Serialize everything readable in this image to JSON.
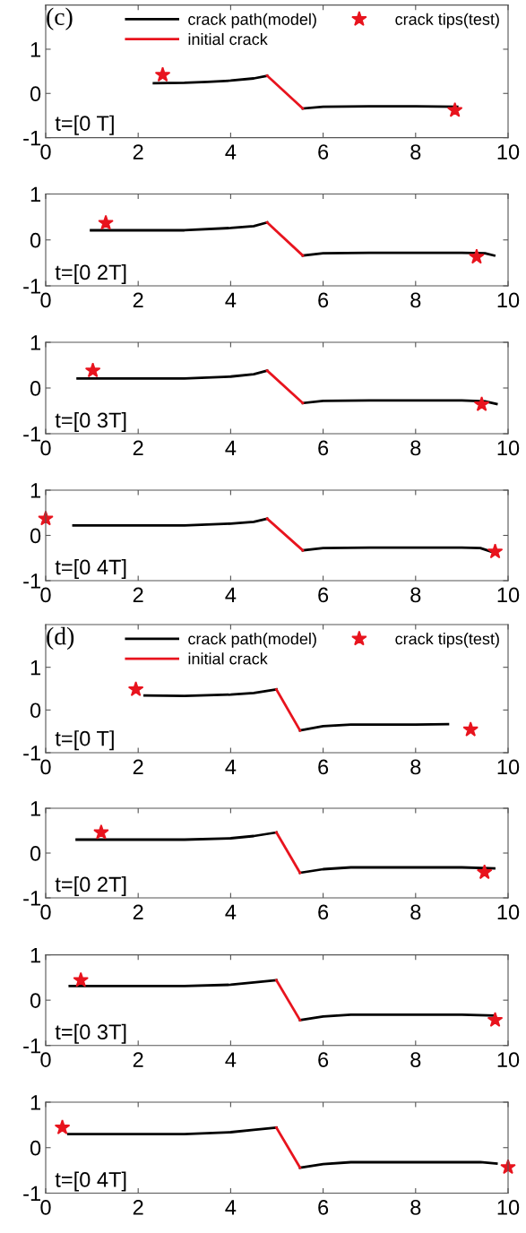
{
  "chart_data": [
    {
      "type": "line",
      "xlim": [
        0,
        10
      ],
      "ylim": [
        -1,
        2
      ],
      "xticks": [
        0,
        2,
        4,
        6,
        8,
        10
      ],
      "yticks": [
        -1,
        0,
        1
      ],
      "legend": "top",
      "annotations": [
        "(c)",
        "t=[0 T]"
      ],
      "series": [
        {
          "name": "crack path(model)",
          "color": "#000000",
          "x": [
            2.34,
            3,
            3.5,
            4,
            4.5,
            4.79,
            null,
            5.56,
            6,
            7,
            8,
            8.9
          ],
          "values": [
            0.23,
            0.24,
            0.26,
            0.29,
            0.34,
            0.4,
            null,
            -0.34,
            -0.3,
            -0.29,
            -0.29,
            -0.3
          ]
        },
        {
          "name": "initial crack",
          "color": "#e8141e",
          "x": [
            4.79,
            5.56
          ],
          "values": [
            0.4,
            -0.34
          ]
        },
        {
          "name": "crack tips(test)",
          "type": "scatter",
          "marker": "star",
          "color": "#e8141e",
          "x": [
            2.53,
            8.85
          ],
          "values": [
            0.42,
            -0.38
          ]
        }
      ]
    },
    {
      "type": "line",
      "xlim": [
        0,
        10
      ],
      "ylim": [
        -1,
        1
      ],
      "xticks": [
        0,
        2,
        4,
        6,
        8,
        10
      ],
      "yticks": [
        -1,
        0,
        1
      ],
      "annotations": [
        "t=[0 2T]"
      ],
      "series": [
        {
          "color": "#000000",
          "x": [
            0.98,
            3,
            4,
            4.5,
            4.79,
            null,
            5.56,
            6,
            7,
            8,
            9,
            9.5,
            9.7
          ],
          "values": [
            0.21,
            0.21,
            0.26,
            0.3,
            0.38,
            null,
            -0.34,
            -0.29,
            -0.28,
            -0.28,
            -0.28,
            -0.29,
            -0.34
          ]
        },
        {
          "color": "#e8141e",
          "x": [
            4.79,
            5.56
          ],
          "values": [
            0.38,
            -0.34
          ]
        },
        {
          "type": "scatter",
          "marker": "star",
          "color": "#e8141e",
          "x": [
            1.3,
            9.32
          ],
          "values": [
            0.37,
            -0.37
          ]
        }
      ]
    },
    {
      "type": "line",
      "xlim": [
        0,
        10
      ],
      "ylim": [
        -1,
        1
      ],
      "xticks": [
        0,
        2,
        4,
        6,
        8,
        10
      ],
      "yticks": [
        -1,
        0,
        1
      ],
      "annotations": [
        "t=[0 3T]"
      ],
      "series": [
        {
          "color": "#000000",
          "x": [
            0.69,
            3,
            4,
            4.5,
            4.79,
            null,
            5.56,
            6,
            7,
            8,
            9,
            9.5,
            9.75
          ],
          "values": [
            0.21,
            0.21,
            0.25,
            0.3,
            0.38,
            null,
            -0.33,
            -0.28,
            -0.27,
            -0.27,
            -0.27,
            -0.29,
            -0.35
          ]
        },
        {
          "color": "#e8141e",
          "x": [
            4.79,
            5.56
          ],
          "values": [
            0.38,
            -0.33
          ]
        },
        {
          "type": "scatter",
          "marker": "star",
          "color": "#e8141e",
          "x": [
            1.02,
            9.43
          ],
          "values": [
            0.38,
            -0.36
          ]
        }
      ]
    },
    {
      "type": "line",
      "xlim": [
        0,
        10
      ],
      "ylim": [
        -1,
        1
      ],
      "xticks": [
        0,
        2,
        4,
        6,
        8,
        10
      ],
      "yticks": [
        -1,
        0,
        1
      ],
      "annotations": [
        "t=[0 4T]"
      ],
      "series": [
        {
          "color": "#000000",
          "x": [
            0.6,
            3,
            4,
            4.5,
            4.79,
            null,
            5.56,
            6,
            7,
            8,
            9,
            9.4,
            9.7
          ],
          "values": [
            0.22,
            0.22,
            0.26,
            0.3,
            0.37,
            null,
            -0.33,
            -0.28,
            -0.27,
            -0.27,
            -0.27,
            -0.28,
            -0.38
          ]
        },
        {
          "color": "#e8141e",
          "x": [
            4.79,
            5.56
          ],
          "values": [
            0.37,
            -0.33
          ]
        },
        {
          "type": "scatter",
          "marker": "star",
          "color": "#e8141e",
          "x": [
            0.0,
            9.72
          ],
          "values": [
            0.37,
            -0.36
          ]
        }
      ]
    },
    {
      "type": "line",
      "xlim": [
        0,
        10
      ],
      "ylim": [
        -1,
        2
      ],
      "xticks": [
        0,
        2,
        4,
        6,
        8,
        10
      ],
      "yticks": [
        -1,
        0,
        1
      ],
      "legend": "top",
      "annotations": [
        "(d)",
        "t=[0 T]"
      ],
      "series": [
        {
          "name": "crack path(model)",
          "color": "#000000",
          "x": [
            2.14,
            3,
            4,
            4.5,
            4.99,
            null,
            5.5,
            6,
            6.6,
            7,
            8,
            8.7
          ],
          "values": [
            0.34,
            0.33,
            0.36,
            0.4,
            0.48,
            null,
            -0.48,
            -0.38,
            -0.34,
            -0.34,
            -0.34,
            -0.33
          ]
        },
        {
          "name": "initial crack",
          "color": "#e8141e",
          "x": [
            4.99,
            5.5
          ],
          "values": [
            0.48,
            -0.48
          ]
        },
        {
          "name": "crack tips(test)",
          "type": "scatter",
          "marker": "star",
          "color": "#e8141e",
          "x": [
            1.95,
            9.19
          ],
          "values": [
            0.48,
            -0.46
          ]
        }
      ]
    },
    {
      "type": "line",
      "xlim": [
        0,
        10
      ],
      "ylim": [
        -1,
        1
      ],
      "xticks": [
        0,
        2,
        4,
        6,
        8,
        10
      ],
      "yticks": [
        -1,
        0,
        1
      ],
      "annotations": [
        "t=[0 2T]"
      ],
      "series": [
        {
          "color": "#000000",
          "x": [
            0.67,
            3,
            4,
            4.5,
            4.99,
            null,
            5.5,
            6,
            6.6,
            7,
            8,
            9,
            9.7
          ],
          "values": [
            0.3,
            0.3,
            0.33,
            0.38,
            0.46,
            null,
            -0.44,
            -0.36,
            -0.32,
            -0.32,
            -0.32,
            -0.32,
            -0.34
          ]
        },
        {
          "color": "#e8141e",
          "x": [
            4.99,
            5.5
          ],
          "values": [
            0.46,
            -0.44
          ]
        },
        {
          "type": "scatter",
          "marker": "star",
          "color": "#e8141e",
          "x": [
            1.2,
            9.49
          ],
          "values": [
            0.46,
            -0.43
          ]
        }
      ]
    },
    {
      "type": "line",
      "xlim": [
        0,
        10
      ],
      "ylim": [
        -1,
        1
      ],
      "xticks": [
        0,
        2,
        4,
        6,
        8,
        10
      ],
      "yticks": [
        -1,
        0,
        1
      ],
      "annotations": [
        "t=[0 3T]"
      ],
      "series": [
        {
          "color": "#000000",
          "x": [
            0.52,
            3,
            4,
            4.5,
            4.99,
            null,
            5.5,
            6,
            6.6,
            7,
            8,
            9,
            9.7
          ],
          "values": [
            0.31,
            0.31,
            0.34,
            0.39,
            0.44,
            null,
            -0.44,
            -0.36,
            -0.32,
            -0.32,
            -0.32,
            -0.32,
            -0.34
          ]
        },
        {
          "color": "#e8141e",
          "x": [
            4.99,
            5.5
          ],
          "values": [
            0.44,
            -0.44
          ]
        },
        {
          "type": "scatter",
          "marker": "star",
          "color": "#e8141e",
          "x": [
            0.76,
            9.72
          ],
          "values": [
            0.44,
            -0.44
          ]
        }
      ]
    },
    {
      "type": "line",
      "xlim": [
        0,
        10
      ],
      "ylim": [
        -1,
        1
      ],
      "xticks": [
        0,
        2,
        4,
        6,
        8,
        10
      ],
      "yticks": [
        -1,
        0,
        1
      ],
      "annotations": [
        "t=[0 4T]"
      ],
      "series": [
        {
          "color": "#000000",
          "x": [
            0.49,
            3,
            4,
            4.5,
            4.99,
            null,
            5.5,
            6,
            6.6,
            7,
            8,
            9.4,
            9.75
          ],
          "values": [
            0.3,
            0.3,
            0.34,
            0.39,
            0.44,
            null,
            -0.44,
            -0.36,
            -0.32,
            -0.32,
            -0.32,
            -0.32,
            -0.35
          ]
        },
        {
          "color": "#e8141e",
          "x": [
            4.99,
            5.5
          ],
          "values": [
            0.44,
            -0.44
          ]
        },
        {
          "type": "scatter",
          "marker": "star",
          "color": "#e8141e",
          "x": [
            0.36,
            10.0
          ],
          "values": [
            0.44,
            -0.43
          ]
        }
      ]
    }
  ]
}
